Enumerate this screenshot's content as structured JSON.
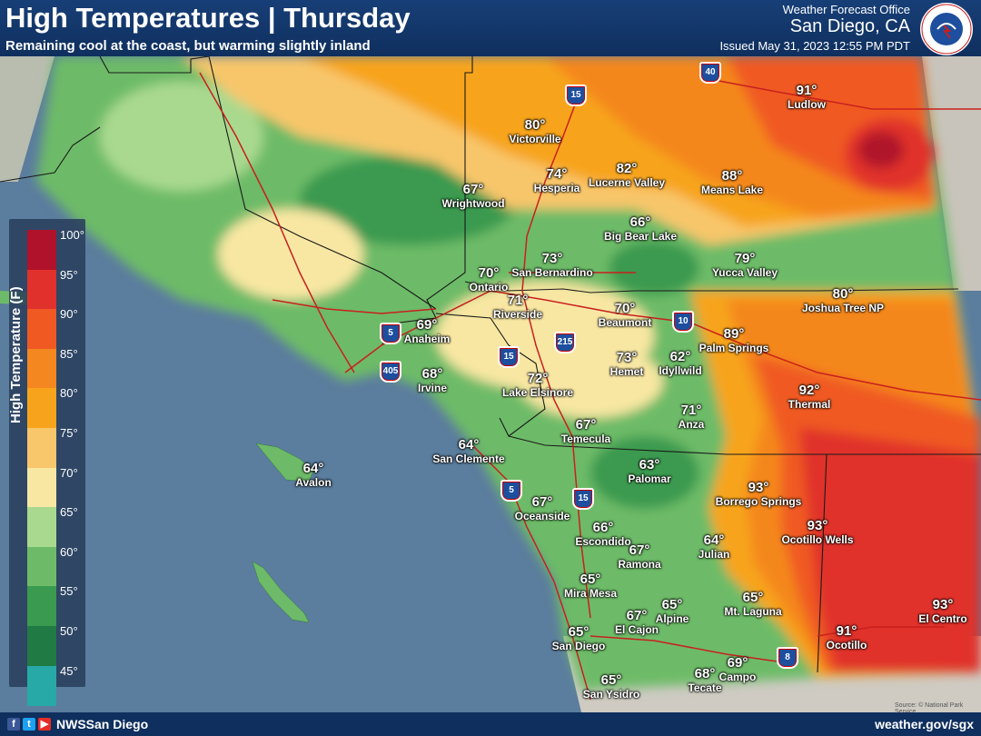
{
  "header": {
    "title": "High Temperatures | Thursday",
    "subtitle": "Remaining cool at the coast, but warming slightly inland",
    "office": "Weather Forecast Office",
    "city": "San Diego, CA",
    "issued": "Issued May 31, 2023 12:55 PM PDT",
    "logo_text": "NATIONAL WEATHER SERVICE"
  },
  "legend": {
    "title": "High Temperature (F)",
    "ticks": [
      "100°",
      "95°",
      "90°",
      "85°",
      "80°",
      "75°",
      "70°",
      "65°",
      "60°",
      "55°",
      "50°",
      "45°"
    ],
    "colors": [
      "#b0122b",
      "#e0312c",
      "#f05a22",
      "#f4871f",
      "#f7a41c",
      "#f8c66b",
      "#f8e7a3",
      "#a9d98e",
      "#6dbb68",
      "#3a9a50",
      "#1f7a43",
      "#27a9a7"
    ]
  },
  "cities": [
    {
      "name": "Victorville",
      "temp": "80°"
    },
    {
      "name": "Hesperia",
      "temp": "74°"
    },
    {
      "name": "Lucerne Valley",
      "temp": "82°"
    },
    {
      "name": "Ludlow",
      "temp": "91°"
    },
    {
      "name": "Means Lake",
      "temp": "88°"
    },
    {
      "name": "Wrightwood",
      "temp": "67°"
    },
    {
      "name": "Big Bear Lake",
      "temp": "66°"
    },
    {
      "name": "San Bernardino",
      "temp": "73°"
    },
    {
      "name": "Ontario",
      "temp": "70°"
    },
    {
      "name": "Yucca Valley",
      "temp": "79°"
    },
    {
      "name": "Joshua Tree NP",
      "temp": "80°"
    },
    {
      "name": "Riverside",
      "temp": "71°"
    },
    {
      "name": "Beaumont",
      "temp": "70°"
    },
    {
      "name": "Anaheim",
      "temp": "69°"
    },
    {
      "name": "Palm Springs",
      "temp": "89°"
    },
    {
      "name": "Irvine",
      "temp": "68°"
    },
    {
      "name": "Lake Elsinore",
      "temp": "72°"
    },
    {
      "name": "Hemet",
      "temp": "73°"
    },
    {
      "name": "Idyllwild",
      "temp": "62°"
    },
    {
      "name": "Thermal",
      "temp": "92°"
    },
    {
      "name": "Anza",
      "temp": "71°"
    },
    {
      "name": "Temecula",
      "temp": "67°"
    },
    {
      "name": "San Clemente",
      "temp": "64°"
    },
    {
      "name": "Avalon",
      "temp": "64°"
    },
    {
      "name": "Palomar",
      "temp": "63°"
    },
    {
      "name": "Borrego Springs",
      "temp": "93°"
    },
    {
      "name": "Oceanside",
      "temp": "67°"
    },
    {
      "name": "Escondido",
      "temp": "66°"
    },
    {
      "name": "Ocotillo Wells",
      "temp": "93°"
    },
    {
      "name": "Ramona",
      "temp": "67°"
    },
    {
      "name": "Julian",
      "temp": "64°"
    },
    {
      "name": "Mira Mesa",
      "temp": "65°"
    },
    {
      "name": "El Centro",
      "temp": "93°"
    },
    {
      "name": "Alpine",
      "temp": "65°"
    },
    {
      "name": "El Cajon",
      "temp": "67°"
    },
    {
      "name": "Mt. Laguna",
      "temp": "65°"
    },
    {
      "name": "San Diego",
      "temp": "65°"
    },
    {
      "name": "Ocotillo",
      "temp": "91°"
    },
    {
      "name": "Campo",
      "temp": "69°"
    },
    {
      "name": "Tecate",
      "temp": "68°"
    },
    {
      "name": "San Ysidro",
      "temp": "65°"
    }
  ],
  "highways": [
    "15",
    "40",
    "5",
    "405",
    "15",
    "215",
    "10",
    "5",
    "15",
    "8"
  ],
  "footer": {
    "fb": "f",
    "tw": "t",
    "yt": "▶",
    "handle": "NWSSan Diego",
    "website": "weather.gov/sgx"
  },
  "credit": "Source: © National Park Service"
}
